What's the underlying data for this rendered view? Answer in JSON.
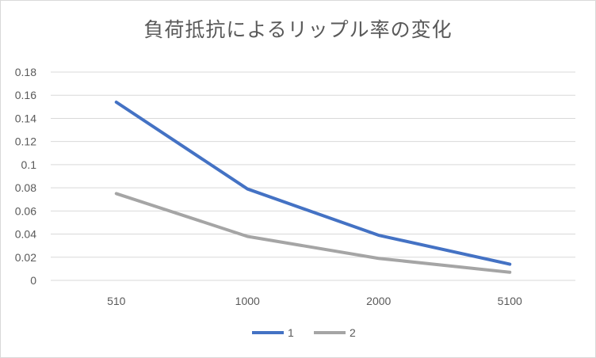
{
  "chart_data": {
    "type": "line",
    "title": "負荷抵抗によるリップル率の変化",
    "xlabel": "",
    "ylabel": "",
    "categories": [
      "510",
      "1000",
      "2000",
      "5100"
    ],
    "series": [
      {
        "name": "1",
        "color": "#4472C4",
        "values": [
          0.154,
          0.079,
          0.039,
          0.014
        ]
      },
      {
        "name": "2",
        "color": "#A5A5A5",
        "values": [
          0.075,
          0.038,
          0.019,
          0.007
        ]
      }
    ],
    "ylim": [
      0,
      0.18
    ],
    "yticks": [
      "0",
      "0.02",
      "0.04",
      "0.06",
      "0.08",
      "0.1",
      "0.12",
      "0.14",
      "0.16",
      "0.18"
    ],
    "grid": true,
    "legend": "bottom"
  }
}
